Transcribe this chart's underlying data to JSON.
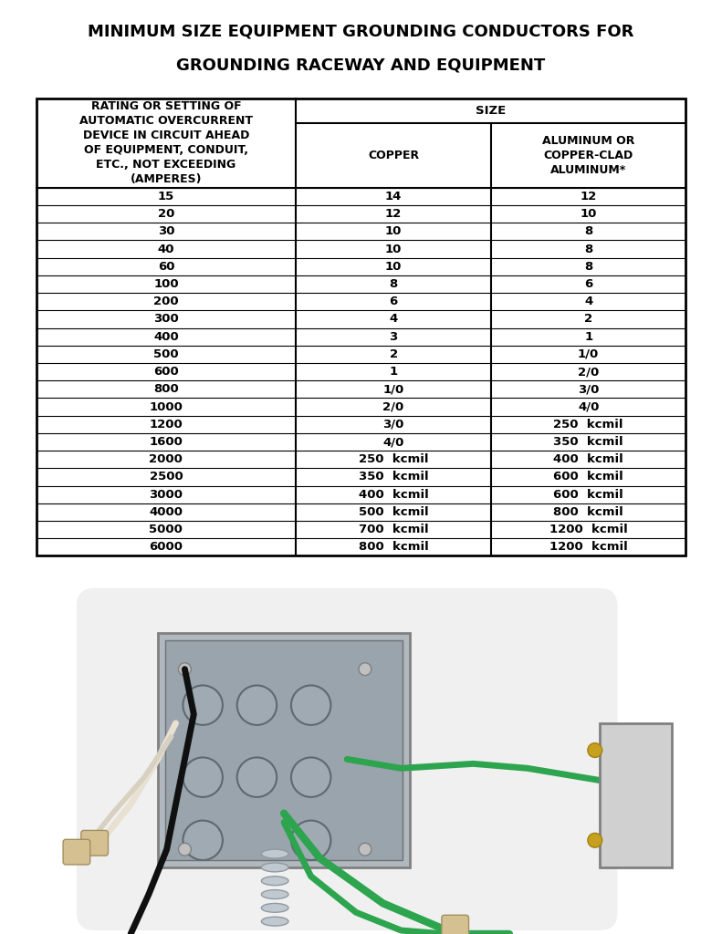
{
  "title_line1": "MINIMUM SIZE EQUIPMENT GROUNDING CONDUCTORS FOR",
  "title_line2": "GROUNDING RACEWAY AND EQUIPMENT",
  "col0_header": "RATING OR SETTING OF\nAUTOMATIC OVERCURRENT\nDEVICE IN CIRCUIT AHEAD\nOF EQUIPMENT, CONDUIT,\nETC., NOT EXCEEDING\n(AMPERES)",
  "col1_main_header": "SIZE",
  "col1_sub_header": "COPPER",
  "col2_sub_header": "ALUMINUM OR\nCOPPER-CLAD\nALUMINUM*",
  "rows": [
    [
      "15",
      "14",
      "12"
    ],
    [
      "20",
      "12",
      "10"
    ],
    [
      "30",
      "10",
      "8"
    ],
    [
      "40",
      "10",
      "8"
    ],
    [
      "60",
      "10",
      "8"
    ],
    [
      "100",
      "8",
      "6"
    ],
    [
      "200",
      "6",
      "4"
    ],
    [
      "300",
      "4",
      "2"
    ],
    [
      "400",
      "3",
      "1"
    ],
    [
      "500",
      "2",
      "1/0"
    ],
    [
      "600",
      "1",
      "2/0"
    ],
    [
      "800",
      "1/0",
      "3/0"
    ],
    [
      "1000",
      "2/0",
      "4/0"
    ],
    [
      "1200",
      "3/0",
      "250  kcmil"
    ],
    [
      "1600",
      "4/0",
      "350  kcmil"
    ],
    [
      "2000",
      "250  kcmil",
      "400  kcmil"
    ],
    [
      "2500",
      "350  kcmil",
      "600  kcmil"
    ],
    [
      "3000",
      "400  kcmil",
      "600  kcmil"
    ],
    [
      "4000",
      "500  kcmil",
      "800  kcmil"
    ],
    [
      "5000",
      "700  kcmil",
      "1200  kcmil"
    ],
    [
      "6000",
      "800  kcmil",
      "1200  kcmil"
    ]
  ],
  "bg_color": "#ffffff",
  "text_color": "#000000",
  "table_border_color": "#000000",
  "title_fontsize": 13,
  "header_fontsize": 9,
  "data_fontsize": 9.5
}
